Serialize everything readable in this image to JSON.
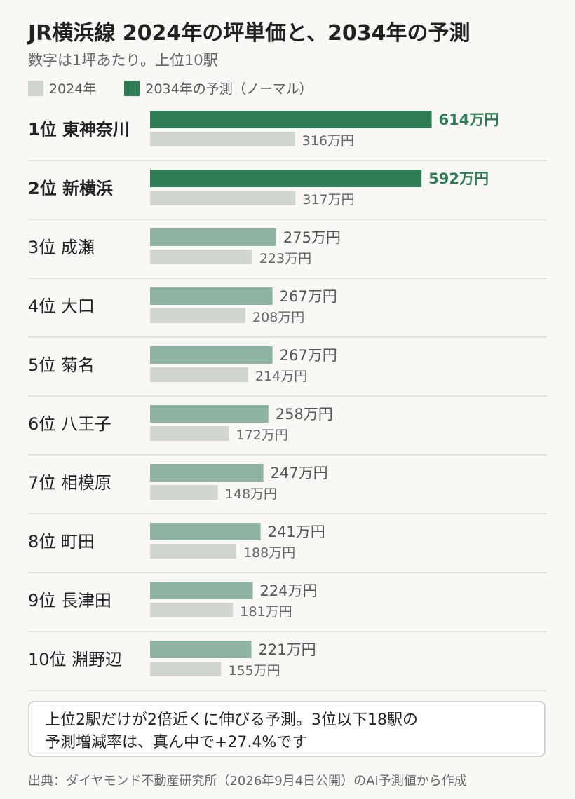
{
  "title": "JR横浜線 2024年の坪単価と、2034年の予測",
  "subtitle": "数字は1坪あたり。上位10駅",
  "legend": {
    "item_2024": "2024年",
    "item_2034": "2034年の予測（ノーマル）"
  },
  "colors": {
    "bar_2024": "#d1d6d0",
    "bar_2034_top": "#2e7d55",
    "bar_2034": "#8fb3a1",
    "label_top": "#2e7d55"
  },
  "chart_data": {
    "type": "bar",
    "orientation": "horizontal",
    "unit": "万円",
    "categories": [
      "1位 東神奈川",
      "2位 新横浜",
      "3位 成瀬",
      "4位 大口",
      "5位 菊名",
      "6位 八王子",
      "7位 相模原",
      "8位 町田",
      "9位 長津田",
      "10位 淵野辺"
    ],
    "highlighted_top": 2,
    "series": [
      {
        "name": "2034年の予測（ノーマル）",
        "values": [
          614,
          592,
          275,
          267,
          267,
          258,
          247,
          241,
          224,
          221
        ]
      },
      {
        "name": "2024年",
        "values": [
          316,
          317,
          223,
          208,
          214,
          172,
          148,
          188,
          181,
          155
        ]
      }
    ]
  },
  "note": {
    "line1": "上位2駅だけが2倍近くに伸びる予測。3位以下18駅の",
    "line2": "予測増減率は、真ん中で+27.4%です"
  },
  "source": "出典：ダイヤモンド不動産研究所（2026年9月4日公開）のAI予測値から作成"
}
